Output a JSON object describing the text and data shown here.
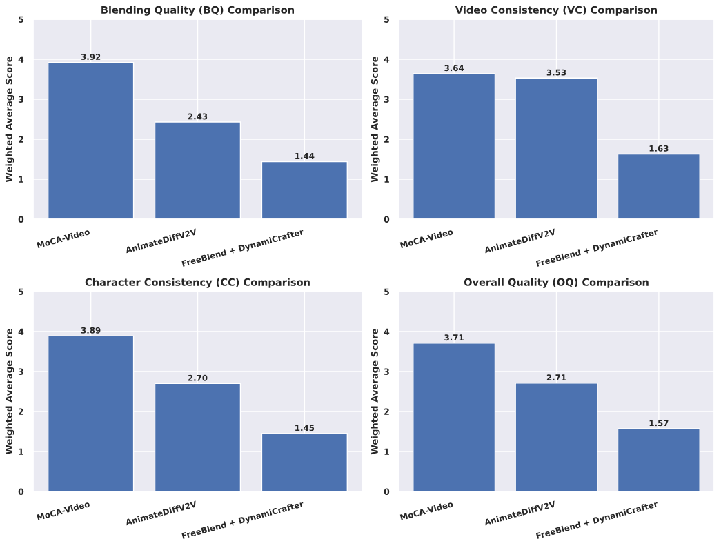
{
  "chart_data": [
    {
      "type": "bar",
      "title": "Blending Quality (BQ) Comparison",
      "ylabel": "Weighted Average Score",
      "categories": [
        "MoCA-Video",
        "AnimateDiffV2V",
        "FreeBlend + DynamiCrafter"
      ],
      "values": [
        3.92,
        2.43,
        1.44
      ],
      "color": "#4c72b0",
      "ylim": [
        0,
        5
      ],
      "yticks": [
        0,
        1,
        2,
        3,
        4,
        5
      ],
      "grid": true,
      "data_labels": true
    },
    {
      "type": "bar",
      "title": "Video Consistency (VC) Comparison",
      "ylabel": "Weighted Average Score",
      "categories": [
        "MoCA-Video",
        "AnimateDiffV2V",
        "FreeBlend + DynamiCrafter"
      ],
      "values": [
        3.64,
        3.53,
        1.63
      ],
      "color": "#4c72b0",
      "ylim": [
        0,
        5
      ],
      "yticks": [
        0,
        1,
        2,
        3,
        4,
        5
      ],
      "grid": true,
      "data_labels": true
    },
    {
      "type": "bar",
      "title": "Character Consistency (CC) Comparison",
      "ylabel": "Weighted Average Score",
      "categories": [
        "MoCA-Video",
        "AnimateDiffV2V",
        "FreeBlend + DynamiCrafter"
      ],
      "values": [
        3.89,
        2.7,
        1.45
      ],
      "value_labels": [
        "3.89",
        "2.70",
        "1.45"
      ],
      "color": "#4c72b0",
      "ylim": [
        0,
        5
      ],
      "yticks": [
        0,
        1,
        2,
        3,
        4,
        5
      ],
      "grid": true
    },
    {
      "type": "bar",
      "title": "Overall Quality (OQ) Comparison",
      "ylabel": "Weighted Average Score",
      "categories": [
        "MoCA-Video",
        "AnimateDiffV2V",
        "FreeBlend + DynamiCrafter"
      ],
      "values": [
        3.71,
        2.71,
        1.57
      ],
      "color": "#4c72b0",
      "ylim": [
        0,
        5
      ],
      "yticks": [
        0,
        1,
        2,
        3,
        4,
        5
      ],
      "grid": true,
      "data_labels": true
    }
  ]
}
